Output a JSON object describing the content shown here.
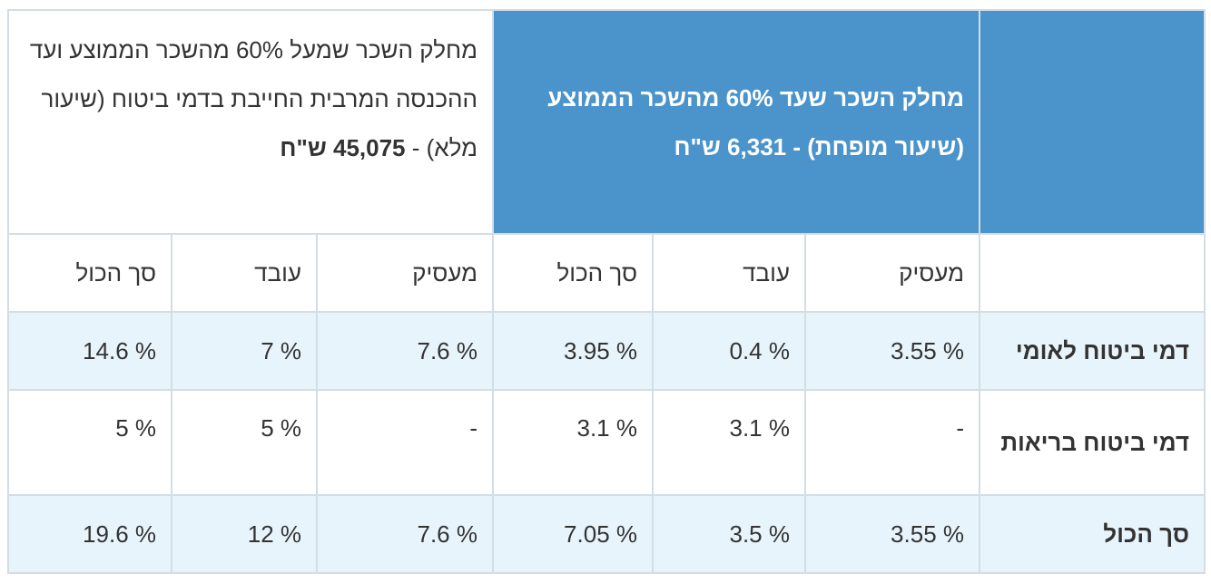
{
  "table": {
    "header": {
      "reduced": "מחלק השכר שעד 60% מהשכר הממוצע (שיעור מופחת) - 6,331 ש\"ח",
      "full_text": "מחלק השכר שמעל 60% מהשכר הממוצע ועד ההכנסה המרבית החייבת בדמי ביטוח (שיעור מלא) - ",
      "full_amount": "45,075 ש\"ח"
    },
    "columns": [
      "מעסיק",
      "עובד",
      "סך הכול",
      "מעסיק",
      "עובד",
      "סך הכול"
    ],
    "rows": [
      {
        "label": "דמי ביטוח לאומי",
        "values": [
          "3.55 %",
          "0.4 %",
          "3.95 %",
          "7.6 %",
          "7 %",
          "14.6 %"
        ]
      },
      {
        "label": "דמי ביטוח בריאות",
        "values": [
          "-",
          "3.1 %",
          "3.1 %",
          "-",
          "5 %",
          "5 %"
        ]
      },
      {
        "label": "סך הכול",
        "values": [
          "3.55 %",
          "3.5 %",
          "7.05 %",
          "7.6 %",
          "12 %",
          "19.6 %"
        ]
      }
    ]
  }
}
